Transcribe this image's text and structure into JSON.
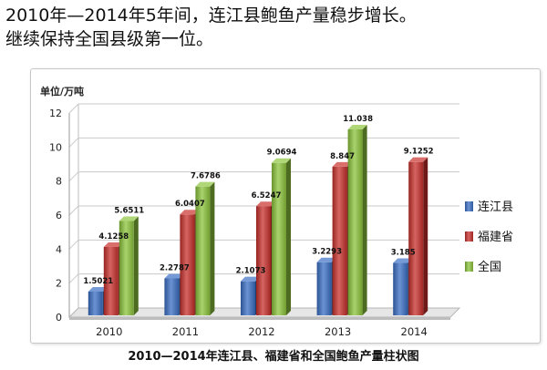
{
  "headline": {
    "line1": "2010年—2014年5年间，连江县鲍鱼产量稳步增长。",
    "line2": "继续保持全国县级第一位。"
  },
  "caption": "2010—2014年连江县、福建省和全国鲍鱼产量柱状图",
  "chart_data": {
    "type": "bar",
    "ylabel": "单位/万吨",
    "ylim": [
      0,
      12
    ],
    "yticks": [
      0,
      2,
      4,
      6,
      8,
      10,
      12
    ],
    "grid": true,
    "legend_position": "right",
    "categories": [
      "2010",
      "2011",
      "2012",
      "2013",
      "2014"
    ],
    "series": [
      {
        "name": "连江县",
        "color": "#3a6fc4",
        "values": [
          1.5021,
          2.2787,
          2.1073,
          3.2293,
          3.185
        ],
        "labels": [
          "1.5021",
          "2.2787",
          "2.1073",
          "3.2293",
          "3.185"
        ]
      },
      {
        "name": "福建省",
        "color": "#c8302c",
        "values": [
          4.1258,
          6.0407,
          6.5247,
          8.847,
          9.1252
        ],
        "labels": [
          "4.1258",
          "6.0407",
          "6.5247",
          "8.847",
          "9.1252"
        ]
      },
      {
        "name": "全国",
        "color": "#8cc43c",
        "values": [
          5.6511,
          7.6786,
          9.0694,
          11.038,
          null
        ],
        "labels": [
          "5.6511",
          "7.6786",
          "9.0694",
          "11.038",
          ""
        ]
      }
    ]
  }
}
